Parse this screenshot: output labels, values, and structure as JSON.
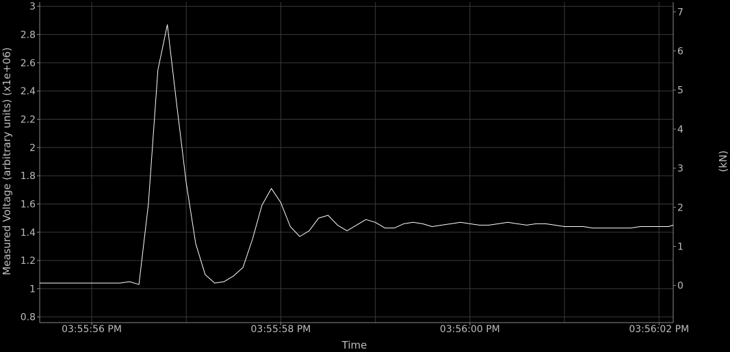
{
  "chart_data": {
    "type": "line",
    "title": "",
    "xlabel": "Time",
    "ylabel": "Measured Voltage (arbitrary units) (x1e+06)",
    "y2label": "(kN)",
    "grid": true,
    "legend": "none",
    "colors": {
      "background": "#000000",
      "grid": "#3a3a3a",
      "axis": "#8a8a8a",
      "line": "#ffffff",
      "text": "#bdbdbd"
    },
    "xlim_seconds": [
      -0.55,
      6.15
    ],
    "ylim": [
      0.76,
      3.03
    ],
    "y2lim": [
      -0.95,
      7.25
    ],
    "x_ticks": [
      {
        "t": 0,
        "label": "03:55:56 PM"
      },
      {
        "t": 2,
        "label": "03:55:58 PM"
      },
      {
        "t": 4,
        "label": "03:56:00 PM"
      },
      {
        "t": 6,
        "label": "03:56:02 PM"
      }
    ],
    "x_minor_grid": [
      1,
      3,
      5
    ],
    "y_ticks": [
      {
        "v": 0.8,
        "label": "0.8"
      },
      {
        "v": 1.0,
        "label": "1"
      },
      {
        "v": 1.2,
        "label": "1.2"
      },
      {
        "v": 1.4,
        "label": "1.4"
      },
      {
        "v": 1.6,
        "label": "1.6"
      },
      {
        "v": 1.8,
        "label": "1.8"
      },
      {
        "v": 2.0,
        "label": "2"
      },
      {
        "v": 2.2,
        "label": "2.2"
      },
      {
        "v": 2.4,
        "label": "2.4"
      },
      {
        "v": 2.6,
        "label": "2.6"
      },
      {
        "v": 2.8,
        "label": "2.8"
      },
      {
        "v": 3.0,
        "label": "3"
      }
    ],
    "y2_ticks": [
      {
        "v": 0,
        "label": "0"
      },
      {
        "v": 1,
        "label": "1"
      },
      {
        "v": 2,
        "label": "2"
      },
      {
        "v": 3,
        "label": "3"
      },
      {
        "v": 4,
        "label": "4"
      },
      {
        "v": 5,
        "label": "5"
      },
      {
        "v": 6,
        "label": "6"
      },
      {
        "v": 7,
        "label": "7"
      }
    ],
    "series": [
      {
        "values": [
          [
            -0.55,
            1.04
          ],
          [
            -0.3,
            1.04
          ],
          [
            0.0,
            1.04
          ],
          [
            0.2,
            1.04
          ],
          [
            0.3,
            1.04
          ],
          [
            0.4,
            1.05
          ],
          [
            0.5,
            1.03
          ],
          [
            0.6,
            1.6
          ],
          [
            0.7,
            2.55
          ],
          [
            0.8,
            2.87
          ],
          [
            0.9,
            2.3
          ],
          [
            1.0,
            1.75
          ],
          [
            1.1,
            1.32
          ],
          [
            1.2,
            1.1
          ],
          [
            1.3,
            1.04
          ],
          [
            1.4,
            1.05
          ],
          [
            1.5,
            1.09
          ],
          [
            1.6,
            1.15
          ],
          [
            1.7,
            1.35
          ],
          [
            1.8,
            1.59
          ],
          [
            1.9,
            1.71
          ],
          [
            2.0,
            1.61
          ],
          [
            2.1,
            1.44
          ],
          [
            2.2,
            1.37
          ],
          [
            2.3,
            1.41
          ],
          [
            2.4,
            1.5
          ],
          [
            2.5,
            1.52
          ],
          [
            2.6,
            1.45
          ],
          [
            2.7,
            1.41
          ],
          [
            2.8,
            1.45
          ],
          [
            2.9,
            1.49
          ],
          [
            3.0,
            1.47
          ],
          [
            3.1,
            1.43
          ],
          [
            3.2,
            1.43
          ],
          [
            3.3,
            1.46
          ],
          [
            3.4,
            1.47
          ],
          [
            3.5,
            1.46
          ],
          [
            3.6,
            1.44
          ],
          [
            3.7,
            1.45
          ],
          [
            3.8,
            1.46
          ],
          [
            3.9,
            1.47
          ],
          [
            4.0,
            1.46
          ],
          [
            4.1,
            1.45
          ],
          [
            4.2,
            1.45
          ],
          [
            4.3,
            1.46
          ],
          [
            4.4,
            1.47
          ],
          [
            4.5,
            1.46
          ],
          [
            4.6,
            1.45
          ],
          [
            4.7,
            1.46
          ],
          [
            4.8,
            1.46
          ],
          [
            4.9,
            1.45
          ],
          [
            5.0,
            1.44
          ],
          [
            5.1,
            1.44
          ],
          [
            5.2,
            1.44
          ],
          [
            5.3,
            1.43
          ],
          [
            5.4,
            1.43
          ],
          [
            5.5,
            1.43
          ],
          [
            5.6,
            1.43
          ],
          [
            5.7,
            1.43
          ],
          [
            5.8,
            1.44
          ],
          [
            5.9,
            1.44
          ],
          [
            6.0,
            1.44
          ],
          [
            6.1,
            1.44
          ],
          [
            6.15,
            1.45
          ]
        ]
      }
    ]
  }
}
